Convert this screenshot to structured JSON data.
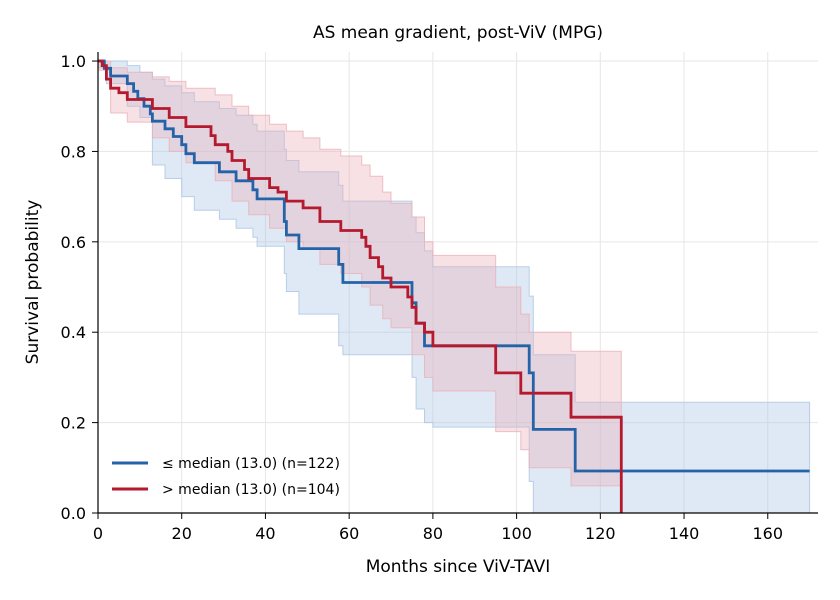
{
  "chart_data": {
    "type": "line",
    "subtype": "kaplan-meier",
    "title": "AS mean gradient, post-ViV (MPG)",
    "xlabel": "Months since ViV-TAVI",
    "ylabel": "Survival probability",
    "xlim": [
      0,
      172
    ],
    "ylim": [
      0,
      1.02
    ],
    "xticks": [
      0,
      20,
      40,
      60,
      80,
      100,
      120,
      140,
      160
    ],
    "yticks": [
      0.0,
      0.2,
      0.4,
      0.6,
      0.8,
      1.0
    ],
    "xtick_labels": [
      "0",
      "20",
      "40",
      "60",
      "80",
      "100",
      "120",
      "140",
      "160"
    ],
    "ytick_labels": [
      "0.0",
      "0.2",
      "0.4",
      "0.6",
      "0.8",
      "1.0"
    ],
    "grid": true,
    "legend_position": "bottom-left",
    "series": [
      {
        "name": "≤ median (13.0) (n=122)",
        "color": "#2563a8",
        "band_color": "#aac4e4",
        "steps": [
          [
            0,
            1.0
          ],
          [
            1.5,
            0.984
          ],
          [
            3,
            0.967
          ],
          [
            7,
            0.95
          ],
          [
            8.5,
            0.933
          ],
          [
            9.5,
            0.917
          ],
          [
            11,
            0.9
          ],
          [
            12.5,
            0.883
          ],
          [
            13,
            0.867
          ],
          [
            16,
            0.85
          ],
          [
            18,
            0.833
          ],
          [
            20,
            0.815
          ],
          [
            21,
            0.795
          ],
          [
            23,
            0.775
          ],
          [
            29,
            0.755
          ],
          [
            33,
            0.735
          ],
          [
            37,
            0.715
          ],
          [
            38,
            0.695
          ],
          [
            44.5,
            0.645
          ],
          [
            45,
            0.615
          ],
          [
            48,
            0.585
          ],
          [
            57.5,
            0.55
          ],
          [
            58.5,
            0.51
          ],
          [
            75,
            0.465
          ],
          [
            76,
            0.42
          ],
          [
            78,
            0.37
          ],
          [
            103,
            0.31
          ],
          [
            104,
            0.185
          ],
          [
            114,
            0.093
          ],
          [
            170,
            0.093
          ]
        ],
        "ci_upper": [
          [
            0,
            1.0
          ],
          [
            2,
            1.0
          ],
          [
            7,
            0.99
          ],
          [
            10,
            0.975
          ],
          [
            13,
            0.96
          ],
          [
            16,
            0.945
          ],
          [
            20,
            0.93
          ],
          [
            23,
            0.91
          ],
          [
            29,
            0.895
          ],
          [
            33,
            0.88
          ],
          [
            37,
            0.86
          ],
          [
            38,
            0.845
          ],
          [
            44.5,
            0.805
          ],
          [
            45,
            0.78
          ],
          [
            48,
            0.755
          ],
          [
            57.5,
            0.725
          ],
          [
            58.5,
            0.69
          ],
          [
            75,
            0.655
          ],
          [
            76,
            0.62
          ],
          [
            78,
            0.58
          ],
          [
            80,
            0.545
          ],
          [
            103,
            0.48
          ],
          [
            104,
            0.35
          ],
          [
            114,
            0.245
          ],
          [
            170,
            0.245
          ]
        ],
        "ci_lower": [
          [
            0,
            0.985
          ],
          [
            2,
            0.95
          ],
          [
            7,
            0.9
          ],
          [
            10,
            0.875
          ],
          [
            13,
            0.77
          ],
          [
            16,
            0.74
          ],
          [
            20,
            0.7
          ],
          [
            23,
            0.67
          ],
          [
            29,
            0.65
          ],
          [
            33,
            0.63
          ],
          [
            37,
            0.61
          ],
          [
            38,
            0.59
          ],
          [
            44.5,
            0.53
          ],
          [
            45,
            0.49
          ],
          [
            48,
            0.44
          ],
          [
            57.5,
            0.37
          ],
          [
            58.5,
            0.35
          ],
          [
            75,
            0.3
          ],
          [
            76,
            0.23
          ],
          [
            78,
            0.2
          ],
          [
            80,
            0.19
          ],
          [
            103,
            0.07
          ],
          [
            104,
            0.0
          ],
          [
            170,
            0.0
          ]
        ]
      },
      {
        "name": "> median (13.0) (n=104)",
        "color": "#b5192d",
        "band_color": "#eab0b8",
        "steps": [
          [
            0,
            1.0
          ],
          [
            1,
            0.99
          ],
          [
            2,
            0.96
          ],
          [
            3,
            0.94
          ],
          [
            5,
            0.93
          ],
          [
            7,
            0.915
          ],
          [
            13,
            0.895
          ],
          [
            17,
            0.875
          ],
          [
            21,
            0.855
          ],
          [
            27,
            0.835
          ],
          [
            28,
            0.815
          ],
          [
            31,
            0.8
          ],
          [
            32,
            0.78
          ],
          [
            35,
            0.76
          ],
          [
            36,
            0.74
          ],
          [
            41,
            0.72
          ],
          [
            43,
            0.71
          ],
          [
            45,
            0.69
          ],
          [
            49,
            0.675
          ],
          [
            53,
            0.645
          ],
          [
            58,
            0.625
          ],
          [
            63,
            0.61
          ],
          [
            64,
            0.59
          ],
          [
            65,
            0.565
          ],
          [
            67,
            0.545
          ],
          [
            68,
            0.52
          ],
          [
            70,
            0.5
          ],
          [
            74,
            0.478
          ],
          [
            75,
            0.455
          ],
          [
            76,
            0.42
          ],
          [
            78,
            0.4
          ],
          [
            80,
            0.37
          ],
          [
            95,
            0.31
          ],
          [
            101,
            0.265
          ],
          [
            113,
            0.212
          ],
          [
            125,
            0.0
          ]
        ],
        "ci_upper": [
          [
            0,
            1.0
          ],
          [
            3,
            0.985
          ],
          [
            7,
            0.975
          ],
          [
            13,
            0.965
          ],
          [
            17,
            0.955
          ],
          [
            21,
            0.94
          ],
          [
            28,
            0.925
          ],
          [
            32,
            0.9
          ],
          [
            36,
            0.88
          ],
          [
            41,
            0.86
          ],
          [
            45,
            0.845
          ],
          [
            49,
            0.83
          ],
          [
            53,
            0.805
          ],
          [
            58,
            0.79
          ],
          [
            63,
            0.77
          ],
          [
            65,
            0.745
          ],
          [
            68,
            0.71
          ],
          [
            70,
            0.685
          ],
          [
            75,
            0.655
          ],
          [
            78,
            0.6
          ],
          [
            80,
            0.57
          ],
          [
            95,
            0.5
          ],
          [
            101,
            0.44
          ],
          [
            103,
            0.4
          ],
          [
            113,
            0.358
          ],
          [
            125,
            0.0
          ]
        ],
        "ci_lower": [
          [
            0,
            0.98
          ],
          [
            3,
            0.885
          ],
          [
            7,
            0.865
          ],
          [
            13,
            0.83
          ],
          [
            17,
            0.8
          ],
          [
            21,
            0.775
          ],
          [
            28,
            0.735
          ],
          [
            32,
            0.69
          ],
          [
            36,
            0.66
          ],
          [
            41,
            0.63
          ],
          [
            45,
            0.6
          ],
          [
            49,
            0.585
          ],
          [
            53,
            0.55
          ],
          [
            58,
            0.53
          ],
          [
            63,
            0.5
          ],
          [
            65,
            0.46
          ],
          [
            68,
            0.43
          ],
          [
            70,
            0.41
          ],
          [
            75,
            0.35
          ],
          [
            78,
            0.3
          ],
          [
            80,
            0.27
          ],
          [
            95,
            0.18
          ],
          [
            101,
            0.14
          ],
          [
            103,
            0.1
          ],
          [
            113,
            0.06
          ],
          [
            125,
            0.0
          ]
        ]
      }
    ]
  }
}
